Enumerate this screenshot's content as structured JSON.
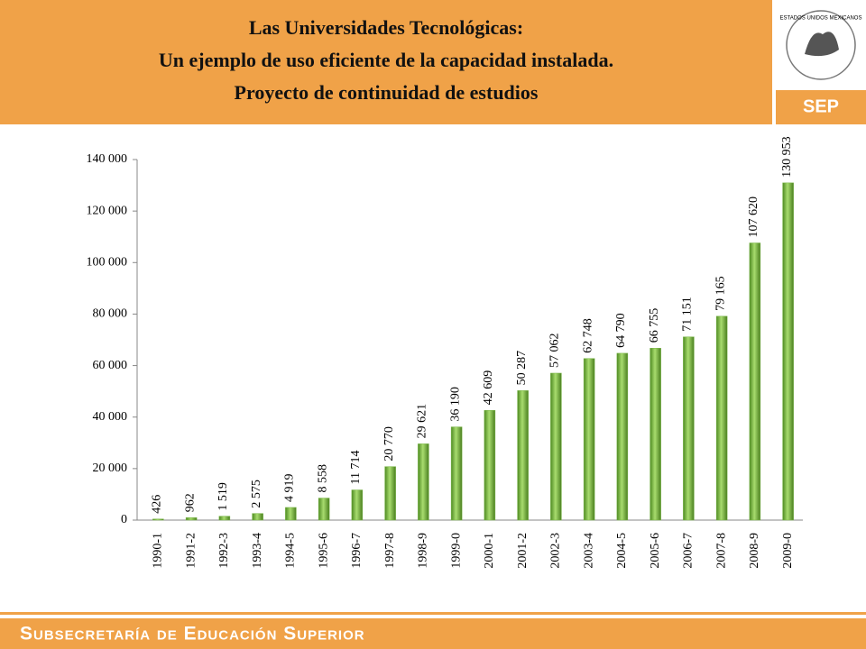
{
  "header": {
    "title_lines": [
      "Las Universidades Tecnológicas:",
      "Un ejemplo de uso eficiente de la capacidad instalada.",
      "Proyecto de continuidad de estudios"
    ],
    "emblem_text": "ESTADOS UNIDOS MEXICANOS",
    "logo": "SEP"
  },
  "footer": {
    "text": "Subsecretaría de Educación Superior"
  },
  "chart_data": {
    "type": "bar",
    "color": "#7ab648",
    "categories": [
      "1990-1",
      "1991-2",
      "1992-3",
      "1993-4",
      "1994-5",
      "1995-6",
      "1996-7",
      "1997-8",
      "1998-9",
      "1999-0",
      "2000-1",
      "2001-2",
      "2002-3",
      "2003-4",
      "2004-5",
      "2005-6",
      "2006-7",
      "2007-8",
      "2008-9",
      "2009-0"
    ],
    "values": [
      426,
      962,
      1519,
      2575,
      4919,
      8558,
      11714,
      20770,
      29621,
      36190,
      42609,
      50287,
      57062,
      62748,
      64790,
      66755,
      71151,
      79165,
      107620,
      130953
    ],
    "value_labels": [
      "426",
      "962",
      "1 519",
      "2 575",
      "4 919",
      "8 558",
      "11 714",
      "20 770",
      "29 621",
      "36 190",
      "42 609",
      "50 287",
      "57 062",
      "62 748",
      "64 790",
      "66 755",
      "71 151",
      "79 165",
      "107 620",
      "130 953"
    ],
    "ylim": [
      0,
      140000
    ],
    "yticks": [
      0,
      {
        "value": 20000,
        "label": "20 000"
      },
      {
        "value": 40000,
        "label": "40 000"
      },
      {
        "value": 60000,
        "label": "60 000"
      },
      {
        "value": 80000,
        "label": "80 000"
      },
      {
        "value": 100000,
        "label": "100 000"
      },
      {
        "value": 120000,
        "label": "120 000"
      },
      {
        "value": 140000,
        "label": "140 000"
      }
    ],
    "grid": false
  }
}
